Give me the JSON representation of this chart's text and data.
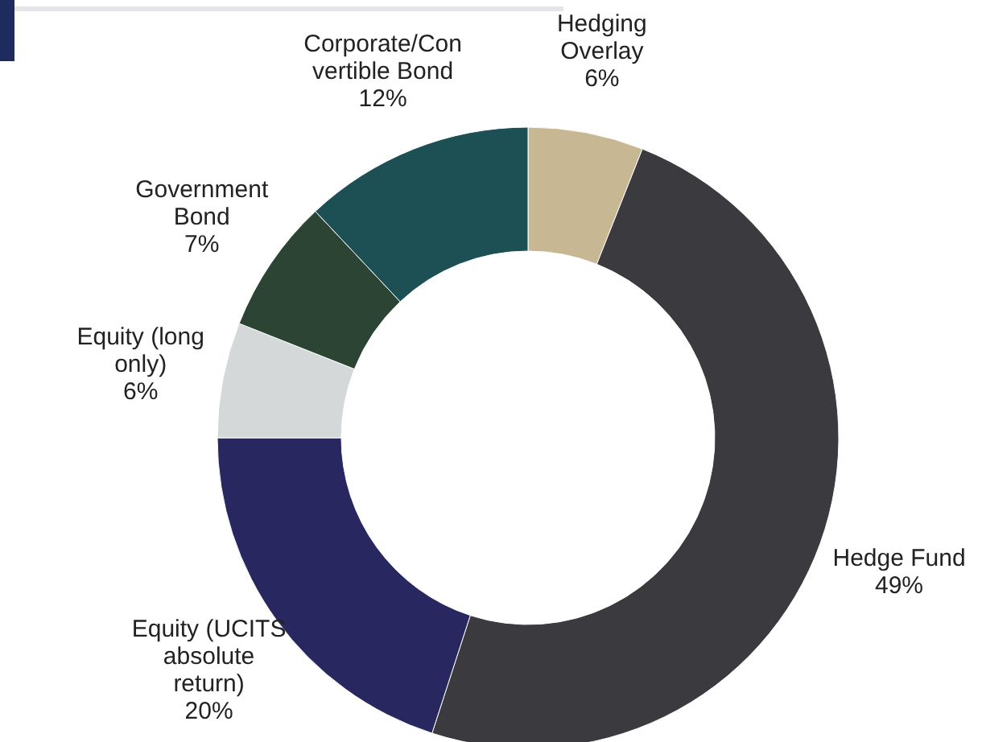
{
  "chart_data": {
    "type": "donut",
    "categories": [
      "Hedging\nOverlay",
      "Hedge Fund",
      "Equity (UCITS\nabsolute\nreturn)",
      "Equity (long\nonly)",
      "Government\nBond",
      "Corporate/Con\nvertible Bond"
    ],
    "values": [
      6,
      49,
      20,
      6,
      7,
      12
    ],
    "colors": [
      "#c8b793",
      "#3b3a3e",
      "#28275f",
      "#d4d8d9",
      "#2c4434",
      "#1c5055"
    ],
    "value_labels": [
      "6%",
      "49%",
      "20%",
      "6%",
      "7%",
      "12%"
    ],
    "legend": false
  }
}
